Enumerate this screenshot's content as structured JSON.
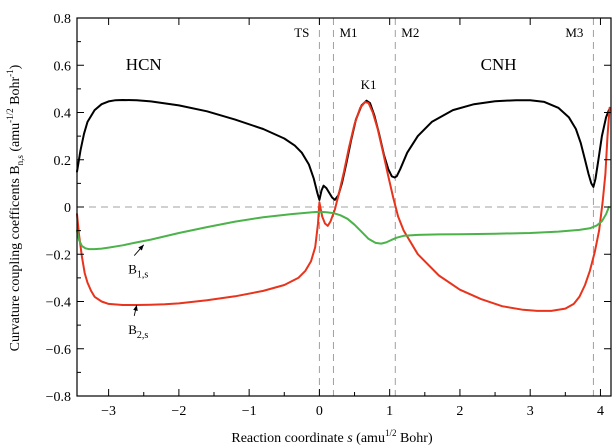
{
  "chart_data": {
    "type": "line",
    "xlabel_main": "Reaction coordinate ",
    "xlabel_var": "s",
    "xlabel_mid": " (amu",
    "xlabel_sup": "1/2",
    "xlabel_end": " Bohr)",
    "ylabel_main": "Curvature coupling coefficents B",
    "ylabel_sub": "n,s",
    "ylabel_mid": " (amu",
    "ylabel_sup": "-1/2",
    "ylabel_mid2": " Bohr",
    "ylabel_sup2": "-1",
    "ylabel_end": ")",
    "xlim": [
      -3.45,
      4.15
    ],
    "ylim": [
      -0.8,
      0.8
    ],
    "xticks": [
      -3,
      -2,
      -1,
      0,
      1,
      2,
      3,
      4
    ],
    "xtick_labels": [
      "−3",
      "−2",
      "−1",
      "0",
      "1",
      "2",
      "3",
      "4"
    ],
    "yticks": [
      -0.8,
      -0.6,
      -0.4,
      -0.2,
      0,
      0.2,
      0.4,
      0.6,
      0.8
    ],
    "ytick_labels": [
      "−0.8",
      "−0.6",
      "−0.4",
      "−0.2",
      "0",
      "0.2",
      "0.4",
      "0.6",
      "0.8"
    ],
    "vlines": [
      {
        "x": 0,
        "label": "TS"
      },
      {
        "x": 0.2,
        "label": "M1"
      },
      {
        "x": 1.08,
        "label": "M2"
      },
      {
        "x": 3.9,
        "label": "M3"
      }
    ],
    "hline": 0,
    "regions": [
      {
        "label": "HCN",
        "x": -2.5,
        "y": 0.58
      },
      {
        "label": "CNH",
        "x": 2.55,
        "y": 0.58
      },
      {
        "label": "K1",
        "x": 0.7,
        "y": 0.5
      }
    ],
    "annotations": [
      {
        "label": "B",
        "sub": "1,s",
        "x": -2.5,
        "y": -0.16,
        "text_x": -2.55,
        "text_y": -0.265
      },
      {
        "label": "B",
        "sub": "2,s",
        "x": -2.6,
        "y": -0.415,
        "text_x": -2.55,
        "text_y": -0.52
      }
    ],
    "series": [
      {
        "color": "#000000",
        "x": [
          -3.45,
          -3.4,
          -3.35,
          -3.3,
          -3.2,
          -3.1,
          -3.0,
          -2.9,
          -2.8,
          -2.6,
          -2.4,
          -2.0,
          -1.6,
          -1.2,
          -0.8,
          -0.5,
          -0.35,
          -0.25,
          -0.15,
          -0.08,
          -0.03,
          0.0,
          0.03,
          0.06,
          0.1,
          0.14,
          0.18,
          0.22,
          0.27,
          0.32,
          0.38,
          0.45,
          0.52,
          0.6,
          0.67,
          0.72,
          0.78,
          0.85,
          0.92,
          0.98,
          1.03,
          1.07,
          1.1,
          1.15,
          1.25,
          1.4,
          1.6,
          1.9,
          2.2,
          2.5,
          2.8,
          3.0,
          3.2,
          3.4,
          3.55,
          3.65,
          3.72,
          3.78,
          3.83,
          3.87,
          3.9,
          3.93,
          3.97,
          4.02,
          4.08,
          4.12
        ],
        "y": [
          0.15,
          0.24,
          0.31,
          0.36,
          0.41,
          0.435,
          0.447,
          0.452,
          0.453,
          0.452,
          0.447,
          0.43,
          0.405,
          0.37,
          0.33,
          0.29,
          0.26,
          0.23,
          0.18,
          0.12,
          0.06,
          0.03,
          0.07,
          0.09,
          0.08,
          0.06,
          0.04,
          0.03,
          0.05,
          0.1,
          0.18,
          0.28,
          0.37,
          0.43,
          0.45,
          0.44,
          0.39,
          0.31,
          0.22,
          0.16,
          0.13,
          0.125,
          0.13,
          0.16,
          0.23,
          0.3,
          0.36,
          0.41,
          0.435,
          0.448,
          0.452,
          0.452,
          0.445,
          0.42,
          0.38,
          0.33,
          0.27,
          0.2,
          0.14,
          0.1,
          0.085,
          0.12,
          0.2,
          0.3,
          0.38,
          0.41
        ]
      },
      {
        "color": "#e8341c",
        "x": [
          -3.45,
          -3.42,
          -3.38,
          -3.34,
          -3.3,
          -3.25,
          -3.2,
          -3.1,
          -3.0,
          -2.8,
          -2.6,
          -2.4,
          -2.2,
          -2.0,
          -1.6,
          -1.2,
          -0.8,
          -0.5,
          -0.3,
          -0.2,
          -0.12,
          -0.06,
          -0.02,
          0.0,
          0.04,
          0.08,
          0.12,
          0.16,
          0.22,
          0.28,
          0.35,
          0.42,
          0.5,
          0.58,
          0.65,
          0.7,
          0.76,
          0.83,
          0.9,
          0.98,
          1.05,
          1.12,
          1.2,
          1.4,
          1.7,
          2.0,
          2.3,
          2.6,
          2.9,
          3.1,
          3.3,
          3.5,
          3.62,
          3.7,
          3.78,
          3.85,
          3.92,
          3.98,
          4.03,
          4.07,
          4.1,
          4.13
        ],
        "y": [
          -0.03,
          -0.12,
          -0.21,
          -0.28,
          -0.32,
          -0.355,
          -0.38,
          -0.4,
          -0.41,
          -0.415,
          -0.415,
          -0.414,
          -0.412,
          -0.408,
          -0.395,
          -0.378,
          -0.355,
          -0.33,
          -0.3,
          -0.27,
          -0.23,
          -0.17,
          -0.07,
          0.02,
          -0.04,
          -0.07,
          -0.08,
          -0.06,
          -0.01,
          0.06,
          0.15,
          0.25,
          0.35,
          0.42,
          0.445,
          0.44,
          0.4,
          0.33,
          0.24,
          0.13,
          0.04,
          -0.04,
          -0.1,
          -0.2,
          -0.29,
          -0.35,
          -0.39,
          -0.42,
          -0.435,
          -0.44,
          -0.44,
          -0.43,
          -0.41,
          -0.38,
          -0.33,
          -0.27,
          -0.19,
          -0.1,
          0.02,
          0.14,
          0.3,
          0.42
        ]
      },
      {
        "color": "#4cb24a",
        "x": [
          -3.45,
          -3.42,
          -3.38,
          -3.33,
          -3.28,
          -3.2,
          -3.1,
          -3.0,
          -2.8,
          -2.6,
          -2.4,
          -2.0,
          -1.6,
          -1.2,
          -0.8,
          -0.4,
          -0.1,
          0.0,
          0.1,
          0.2,
          0.3,
          0.4,
          0.5,
          0.6,
          0.7,
          0.8,
          0.88,
          0.95,
          1.02,
          1.1,
          1.2,
          1.4,
          1.7,
          2.0,
          2.5,
          3.0,
          3.4,
          3.7,
          3.85,
          3.95,
          4.02,
          4.08,
          4.12
        ],
        "y": [
          -0.1,
          -0.14,
          -0.165,
          -0.175,
          -0.178,
          -0.178,
          -0.176,
          -0.172,
          -0.162,
          -0.15,
          -0.138,
          -0.11,
          -0.085,
          -0.062,
          -0.043,
          -0.03,
          -0.022,
          -0.02,
          -0.022,
          -0.026,
          -0.035,
          -0.05,
          -0.075,
          -0.105,
          -0.135,
          -0.152,
          -0.155,
          -0.15,
          -0.14,
          -0.13,
          -0.122,
          -0.118,
          -0.116,
          -0.115,
          -0.113,
          -0.11,
          -0.104,
          -0.097,
          -0.09,
          -0.078,
          -0.06,
          -0.03,
          0.0
        ]
      }
    ]
  }
}
